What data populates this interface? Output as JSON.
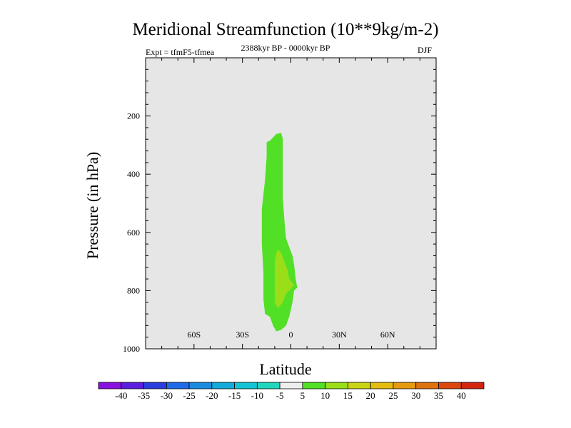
{
  "chart_data": {
    "type": "contour",
    "title": "Meridional Streamfunction (10**9kg/m-2)",
    "subtitle_left": "Expt = tfmF5-tfmea",
    "subtitle_center": "2388kyr BP - 0000kyr BP",
    "subtitle_right": "DJF",
    "xlabel": "Latitude",
    "ylabel": "Pressure (in hPa)",
    "xlim": [
      -90,
      90
    ],
    "ylim": [
      0,
      1000
    ],
    "x_ticks": [
      {
        "value": -60,
        "label": "60S"
      },
      {
        "value": -30,
        "label": "30S"
      },
      {
        "value": 0,
        "label": "0"
      },
      {
        "value": 30,
        "label": "30N"
      },
      {
        "value": 60,
        "label": "60N"
      }
    ],
    "y_ticks": [
      200,
      400,
      600,
      800,
      1000
    ],
    "background_color": "#e6e6e6",
    "colorbar": {
      "labels": [
        "-40",
        "-35",
        "-30",
        "-25",
        "-20",
        "-15",
        "-10",
        "-5",
        "5",
        "10",
        "15",
        "20",
        "25",
        "30",
        "35",
        "40"
      ],
      "colors": [
        "#8a12e0",
        "#5a1ee0",
        "#2a3ee0",
        "#1f6ae6",
        "#1a8ae0",
        "#14aadc",
        "#12c4d6",
        "#20d6bc",
        "#eeeeee",
        "#52e026",
        "#9ade1a",
        "#cad414",
        "#e4bc10",
        "#e69a10",
        "#e0720e",
        "#dc480c",
        "#d42410"
      ]
    },
    "regions": [
      {
        "level": "5 to 10",
        "color": "#52e026",
        "outline": [
          [
            -15,
            290
          ],
          [
            -13,
            285
          ],
          [
            -9,
            262
          ],
          [
            -6,
            258
          ],
          [
            -5,
            278
          ],
          [
            -5,
            480
          ],
          [
            -4,
            560
          ],
          [
            -3,
            620
          ],
          [
            -1,
            650
          ],
          [
            1,
            680
          ],
          [
            2,
            710
          ],
          [
            3,
            760
          ],
          [
            4,
            790
          ],
          [
            2,
            800
          ],
          [
            1,
            840
          ],
          [
            -1,
            890
          ],
          [
            -3,
            920
          ],
          [
            -6,
            935
          ],
          [
            -9,
            940
          ],
          [
            -11,
            920
          ],
          [
            -13,
            890
          ],
          [
            -16,
            880
          ],
          [
            -17,
            830
          ],
          [
            -17,
            740
          ],
          [
            -18,
            640
          ],
          [
            -18,
            520
          ],
          [
            -16,
            420
          ],
          [
            -15,
            340
          ]
        ]
      },
      {
        "level": "10 to 15",
        "color": "#9ade1a",
        "outline": [
          [
            -9,
            670
          ],
          [
            -8,
            660
          ],
          [
            -6,
            670
          ],
          [
            -4,
            700
          ],
          [
            -2,
            730
          ],
          [
            -1,
            760
          ],
          [
            2,
            780
          ],
          [
            -1,
            800
          ],
          [
            -3,
            810
          ],
          [
            -5,
            840
          ],
          [
            -8,
            860
          ],
          [
            -10,
            840
          ],
          [
            -10,
            760
          ],
          [
            -10,
            700
          ]
        ]
      }
    ]
  }
}
